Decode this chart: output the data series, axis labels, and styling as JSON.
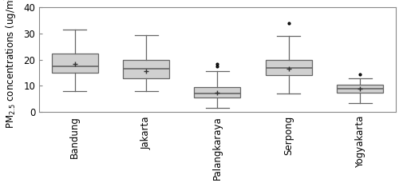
{
  "cities": [
    "Bandung",
    "Jakarta",
    "Palangkaraya",
    "Serpong",
    "Yogyakarta"
  ],
  "boxes": {
    "Bandung": {
      "q1": 15.0,
      "median": 17.5,
      "q3": 22.5,
      "mean": 18.5,
      "whislo": 8.0,
      "whishi": 31.5,
      "fliers": []
    },
    "Jakarta": {
      "q1": 13.0,
      "median": 16.5,
      "q3": 20.0,
      "mean": 15.5,
      "whislo": 8.0,
      "whishi": 29.5,
      "fliers": []
    },
    "Palangkaraya": {
      "q1": 5.5,
      "median": 7.0,
      "q3": 9.5,
      "mean": 7.5,
      "whislo": 1.5,
      "whishi": 15.5,
      "fliers": [
        17.5,
        18.5
      ]
    },
    "Serpong": {
      "q1": 14.0,
      "median": 17.0,
      "q3": 20.0,
      "mean": 16.5,
      "whislo": 7.0,
      "whishi": 29.0,
      "fliers": [
        34.0
      ]
    },
    "Yogyakarta": {
      "q1": 7.5,
      "median": 9.0,
      "q3": 10.5,
      "mean": 9.0,
      "whislo": 3.5,
      "whishi": 13.0,
      "fliers": [
        14.5
      ]
    }
  },
  "ylabel": "PM$_{2.5}$ concentrations (ug/m$^3$)",
  "ylim": [
    0,
    40
  ],
  "yticks": [
    0,
    10,
    20,
    30,
    40
  ],
  "box_color": "#d0d0d0",
  "box_edgecolor": "#666666",
  "whisker_color": "#666666",
  "cap_color": "#666666",
  "median_color": "#666666",
  "mean_marker": "+",
  "mean_color": "#333333",
  "flier_color": "#333333",
  "background_color": "#ffffff",
  "fig_background": "#ffffff"
}
